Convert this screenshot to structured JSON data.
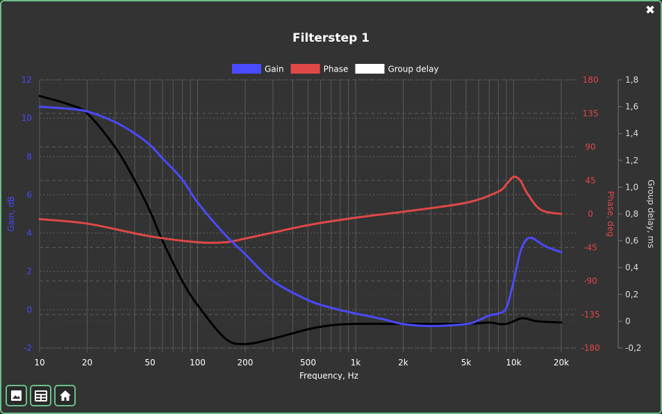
{
  "window": {
    "close_glyph": "✖"
  },
  "toolbar": [
    {
      "name": "image-icon"
    },
    {
      "name": "table-icon"
    },
    {
      "name": "home-icon"
    }
  ],
  "chart_data": {
    "type": "line",
    "title": "Filterstep 1",
    "xlabel": "Frequency, Hz",
    "x_scale": "log",
    "xlim": [
      10,
      25000
    ],
    "x_ticks": [
      10,
      20,
      50,
      100,
      200,
      500,
      1000,
      2000,
      5000,
      10000,
      20000
    ],
    "x_tick_labels": [
      "10",
      "20",
      "50",
      "100",
      "200",
      "500",
      "1k",
      "2k",
      "5k",
      "10k",
      "20k"
    ],
    "grid": true,
    "legend_position": "top",
    "axes": {
      "gain": {
        "label": "Gain, dB",
        "side": "left",
        "range": [
          -2,
          12
        ],
        "ticks": [
          "-2",
          "0",
          "2",
          "4",
          "6",
          "8",
          "10",
          "12"
        ],
        "color": "#4a4aff"
      },
      "phase": {
        "label": "Phase, deg",
        "side": "right",
        "range": [
          -180,
          180
        ],
        "ticks": [
          "-180",
          "-135",
          "-90",
          "-45",
          "0",
          "45",
          "90",
          "135",
          "180"
        ],
        "color": "#e04848"
      },
      "delay": {
        "label": "Group delay, ms",
        "side": "right",
        "range": [
          -0.2,
          1.8
        ],
        "ticks": [
          "-0,2",
          "0",
          "0,2",
          "0,4",
          "0,6",
          "0,8",
          "1,0",
          "1,2",
          "1,4",
          "1,6",
          "1,8"
        ],
        "color": "#dddddd"
      }
    },
    "series": [
      {
        "name": "Gain",
        "axis": "gain",
        "color": "#4a4aff",
        "legend_color": "#4a4aff",
        "x": [
          10,
          15,
          20,
          30,
          40,
          50,
          60,
          80,
          100,
          150,
          200,
          300,
          500,
          700,
          1000,
          1500,
          2000,
          3000,
          5000,
          6000,
          7000,
          8000,
          9000,
          10000,
          11000,
          12000,
          13000,
          14000,
          16000,
          20000
        ],
        "y": [
          10.6,
          10.5,
          10.35,
          9.8,
          9.2,
          8.6,
          7.9,
          6.8,
          5.6,
          3.9,
          2.9,
          1.5,
          0.5,
          0.1,
          -0.2,
          -0.5,
          -0.75,
          -0.85,
          -0.75,
          -0.55,
          -0.3,
          -0.2,
          0.1,
          1.5,
          3.0,
          3.65,
          3.75,
          3.6,
          3.3,
          3.0
        ]
      },
      {
        "name": "Phase",
        "axis": "phase",
        "color": "#e04848",
        "legend_color": "#e04848",
        "x": [
          10,
          20,
          50,
          100,
          150,
          200,
          300,
          500,
          1000,
          2000,
          5000,
          8000,
          9000,
          10000,
          11000,
          12000,
          14000,
          16000,
          20000
        ],
        "y": [
          -7,
          -13,
          -30,
          -38,
          -38,
          -33,
          -25,
          -15,
          -5,
          3,
          15,
          30,
          40,
          50,
          45,
          30,
          10,
          3,
          0
        ]
      },
      {
        "name": "Group delay",
        "axis": "delay",
        "color": "#000000",
        "legend_color": "#ffffff",
        "x": [
          10,
          15,
          20,
          30,
          40,
          50,
          60,
          80,
          100,
          150,
          200,
          300,
          500,
          700,
          1000,
          2000,
          5000,
          7000,
          8000,
          9000,
          10000,
          11000,
          12000,
          14000,
          20000
        ],
        "y": [
          1.68,
          1.62,
          1.55,
          1.3,
          1.05,
          0.82,
          0.6,
          0.3,
          0.12,
          -0.13,
          -0.17,
          -0.13,
          -0.06,
          -0.03,
          -0.02,
          -0.02,
          -0.02,
          -0.01,
          -0.02,
          -0.02,
          0.0,
          0.02,
          0.02,
          0.0,
          -0.01
        ]
      }
    ]
  }
}
